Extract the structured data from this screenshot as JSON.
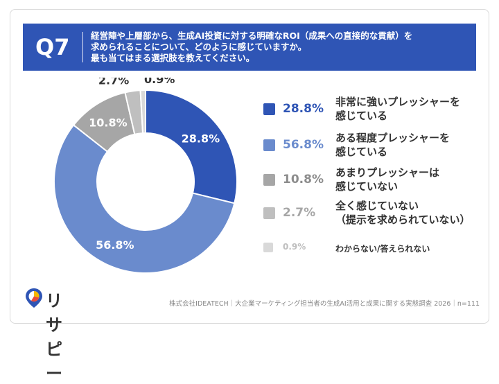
{
  "question": {
    "number": "Q7",
    "text": "経営陣や上層部から、生成AI投資に対する明確なROI（成果への直接的な貢献）を\n求められることについて、どのように感じていますか。\n最も当てはまる選択肢を教えてください。"
  },
  "chart_data": {
    "type": "pie",
    "variant": "donut",
    "categories": [
      "非常に強いプレッシャーを\n感じている",
      "ある程度プレッシャーを\n感じている",
      "あまりプレッシャーは\n感じていない",
      "全く感じていない\n（提示を求められていない）",
      "わからない/答えられない"
    ],
    "values": [
      28.8,
      56.8,
      10.8,
      2.7,
      0.9
    ],
    "labels": [
      "28.8%",
      "56.8%",
      "10.8%",
      "2.7%",
      "0.9%"
    ],
    "colors": [
      "#2f55b5",
      "#6a8bcd",
      "#a6a6a6",
      "#bfbfbf",
      "#d9d9d9"
    ],
    "legend_text_colors": [
      "#2f55b5",
      "#6a8bcd",
      "#8c8c8c",
      "#a6a6a6",
      "#bfbfbf"
    ],
    "legend_placement": "right"
  },
  "footer": {
    "logo_text": "リサピー",
    "source": "株式会社IDEATECH｜大企業マーケティング担当者の生成AI活用と成果に関する実態調査 2026｜n=111"
  }
}
